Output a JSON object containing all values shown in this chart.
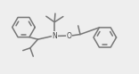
{
  "bg_color": "#eeeeee",
  "bond_color": "#777777",
  "atom_color": "#444444",
  "bond_lw": 1.1,
  "ring_lw": 1.1,
  "xlim": [
    0,
    10
  ],
  "ylim": [
    0,
    5.3
  ],
  "figsize": [
    1.56,
    0.83
  ],
  "dpi": 100,
  "N_label_fontsize": 5.5,
  "O_label_fontsize": 5.5
}
